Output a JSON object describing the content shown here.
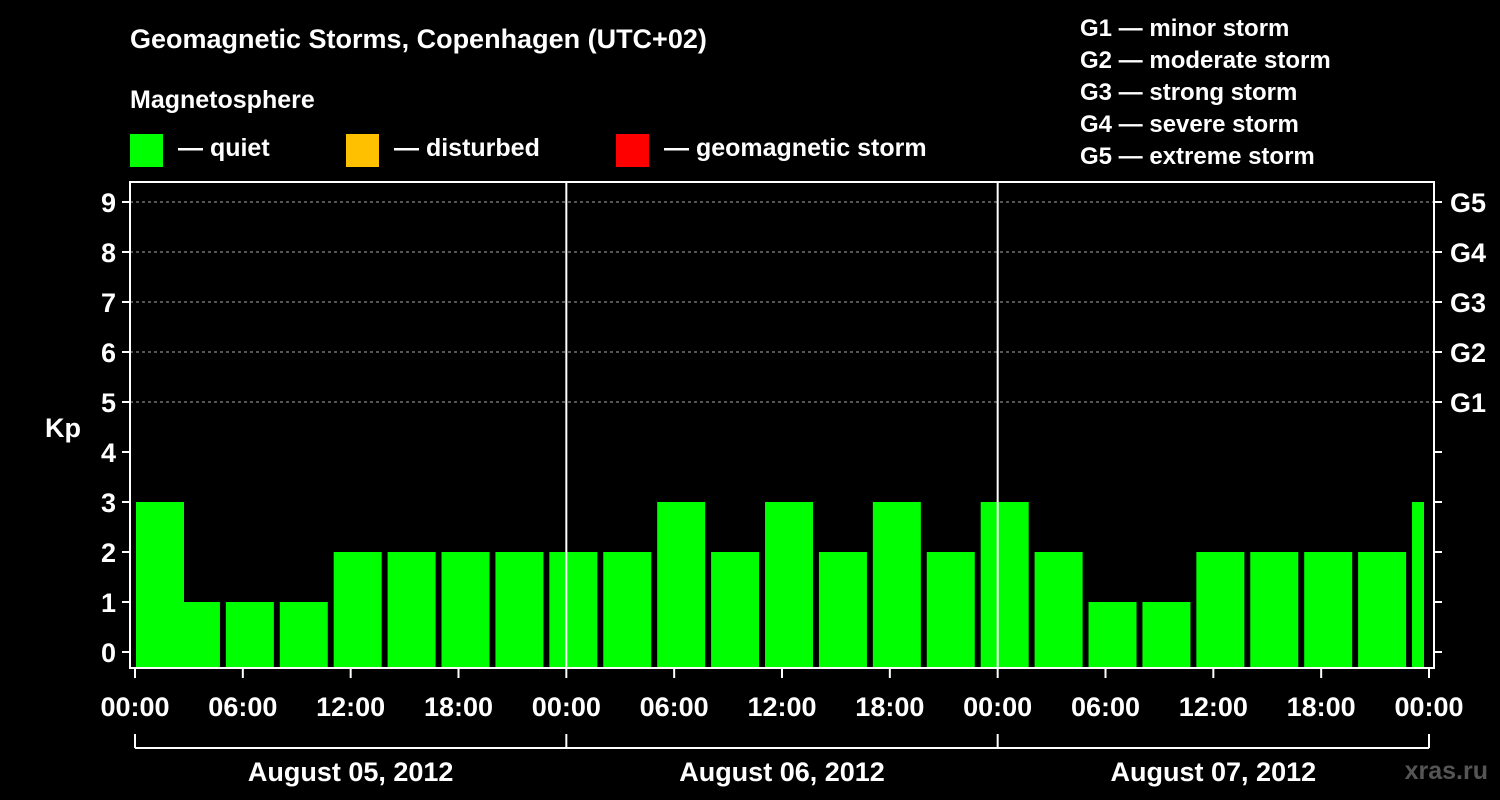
{
  "title": "Geomagnetic Storms, Copenhagen (UTC+02)",
  "magnetosphere_title": "Magnetosphere",
  "legend": [
    {
      "label": "— quiet",
      "color": "#00ff00"
    },
    {
      "label": "— disturbed",
      "color": "#ffc000"
    },
    {
      "label": "— geomagnetic storm",
      "color": "#ff0000"
    }
  ],
  "storm_scale": [
    "G1 — minor storm",
    "G2 — moderate storm",
    "G3 — strong storm",
    "G4 — severe storm",
    "G5 — extreme storm"
  ],
  "watermark": "xras.ru",
  "chart_data": {
    "type": "bar",
    "ylabel": "Kp",
    "ylim": [
      0,
      9
    ],
    "yticks": [
      "0",
      "1",
      "2",
      "3",
      "4",
      "5",
      "6",
      "7",
      "8",
      "9"
    ],
    "right_ticks": [
      {
        "value": 5,
        "label": "G1"
      },
      {
        "value": 6,
        "label": "G2"
      },
      {
        "value": 7,
        "label": "G3"
      },
      {
        "value": 8,
        "label": "G4"
      },
      {
        "value": 9,
        "label": "G5"
      }
    ],
    "xtick_labels": [
      "00:00",
      "06:00",
      "12:00",
      "18:00",
      "00:00",
      "06:00",
      "12:00",
      "18:00",
      "00:00",
      "06:00",
      "12:00",
      "18:00",
      "00:00"
    ],
    "days": [
      "August 05, 2012",
      "August 06, 2012",
      "August 07, 2012"
    ],
    "grid": true,
    "bar_color": "#00ff00",
    "bars": [
      {
        "start_hour": 0,
        "value": 3
      },
      {
        "start_hour": 2,
        "value": 1
      },
      {
        "start_hour": 5,
        "value": 1
      },
      {
        "start_hour": 8,
        "value": 1
      },
      {
        "start_hour": 11,
        "value": 2
      },
      {
        "start_hour": 14,
        "value": 2
      },
      {
        "start_hour": 17,
        "value": 2
      },
      {
        "start_hour": 20,
        "value": 2
      },
      {
        "start_hour": 23,
        "value": 2
      },
      {
        "start_hour": 26,
        "value": 2
      },
      {
        "start_hour": 29,
        "value": 3
      },
      {
        "start_hour": 32,
        "value": 2
      },
      {
        "start_hour": 35,
        "value": 3
      },
      {
        "start_hour": 38,
        "value": 2
      },
      {
        "start_hour": 41,
        "value": 3
      },
      {
        "start_hour": 44,
        "value": 2
      },
      {
        "start_hour": 47,
        "value": 3
      },
      {
        "start_hour": 50,
        "value": 2
      },
      {
        "start_hour": 53,
        "value": 1
      },
      {
        "start_hour": 56,
        "value": 1
      },
      {
        "start_hour": 59,
        "value": 2
      },
      {
        "start_hour": 62,
        "value": 2
      },
      {
        "start_hour": 65,
        "value": 2
      },
      {
        "start_hour": 68,
        "value": 2
      },
      {
        "start_hour": 71,
        "value": 3
      }
    ]
  }
}
